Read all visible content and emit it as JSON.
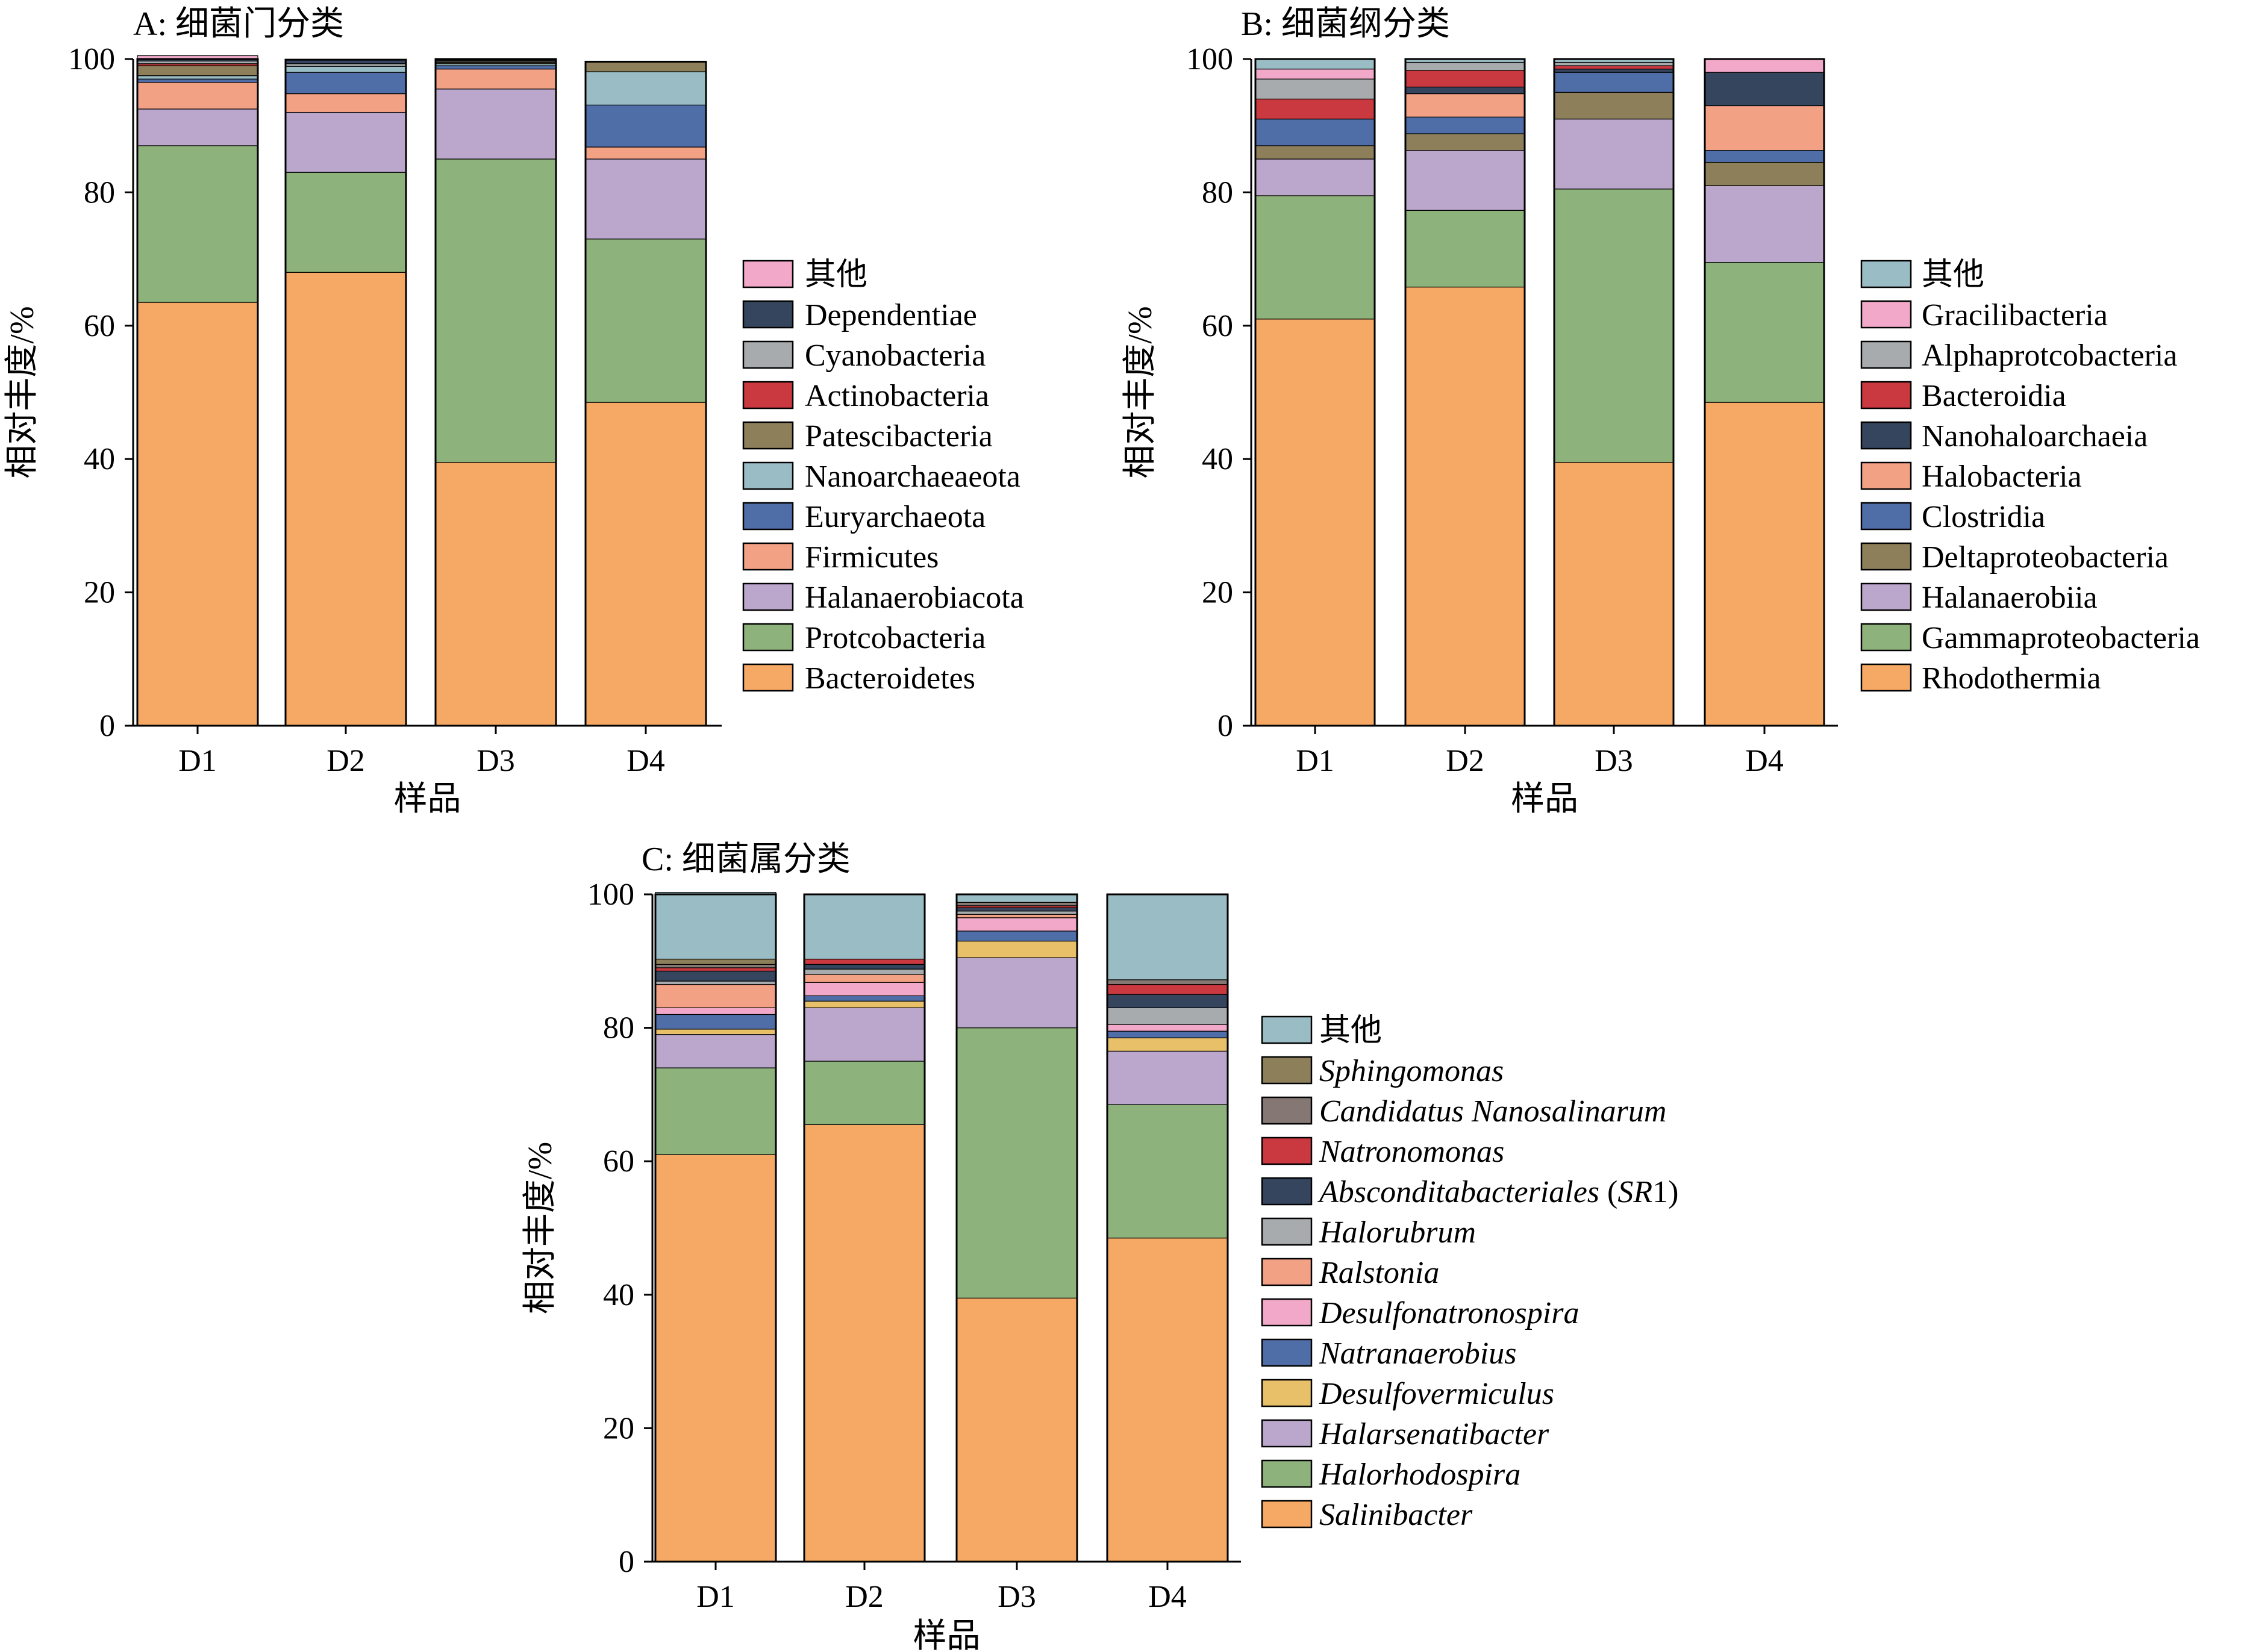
{
  "chart_data": [
    {
      "id": "A",
      "type": "bar",
      "title": "A: 细菌门分类",
      "xlabel": "样品",
      "ylabel": "相对丰度/%",
      "ylim": [
        0,
        100
      ],
      "yticks": [
        "0",
        "20",
        "40",
        "60",
        "80",
        "100"
      ],
      "categories": [
        "D1",
        "D2",
        "D3",
        "D4"
      ],
      "legend_position": "right",
      "series": [
        {
          "name": "Bacteroidetes",
          "color": "#F5A964",
          "italic": false,
          "values": [
            63.5,
            68.0,
            39.5,
            48.5
          ]
        },
        {
          "name": "Protcobacteria",
          "color": "#8DB27B",
          "italic": false,
          "values": [
            23.5,
            15.0,
            45.5,
            24.5
          ]
        },
        {
          "name": "Halanaerobiacota",
          "color": "#BCA7CC",
          "italic": false,
          "values": [
            5.5,
            9.0,
            10.5,
            12.0
          ]
        },
        {
          "name": "Firmicutes",
          "color": "#F3A185",
          "italic": false,
          "values": [
            4.0,
            2.8,
            3.0,
            1.8
          ]
        },
        {
          "name": "Euryarchaeota",
          "color": "#4F6EA8",
          "italic": false,
          "values": [
            0.5,
            3.2,
            0.5,
            6.3
          ]
        },
        {
          "name": "Nanoarchaeaeota",
          "color": "#9ABDC5",
          "italic": false,
          "values": [
            0.5,
            0.9,
            0.3,
            5.0
          ]
        },
        {
          "name": "Patescibacteria",
          "color": "#8C7F5A",
          "italic": false,
          "values": [
            1.5,
            0.0,
            0.2,
            1.5
          ]
        },
        {
          "name": "Actinobacteria",
          "color": "#C9393F",
          "italic": false,
          "values": [
            0.3,
            0.0,
            0.1,
            0.0
          ]
        },
        {
          "name": "Cyanobacteria",
          "color": "#A8ABAD",
          "italic": false,
          "values": [
            0.4,
            0.4,
            0.2,
            0.0
          ]
        },
        {
          "name": "Dependentiae",
          "color": "#36455E",
          "italic": false,
          "values": [
            0.3,
            0.6,
            0.2,
            0.0
          ]
        },
        {
          "name": "其他",
          "color": "#F2A8C8",
          "italic": false,
          "values": [
            0.5,
            0.0,
            0.0,
            0.0
          ]
        }
      ]
    },
    {
      "id": "B",
      "type": "bar",
      "title": "B: 细菌纲分类",
      "xlabel": "样品",
      "ylabel": "相对丰度/%",
      "ylim": [
        0,
        100
      ],
      "yticks": [
        "0",
        "20",
        "40",
        "60",
        "80",
        "100"
      ],
      "categories": [
        "D1",
        "D2",
        "D3",
        "D4"
      ],
      "legend_position": "right",
      "series": [
        {
          "name": "Rhodothermia",
          "color": "#F5A964",
          "italic": false,
          "values": [
            61.0,
            65.8,
            39.5,
            48.5
          ]
        },
        {
          "name": "Gammaproteobacteria",
          "color": "#8DB27B",
          "italic": false,
          "values": [
            18.5,
            11.5,
            41.0,
            21.0
          ]
        },
        {
          "name": "Halanaerobiia",
          "color": "#BCA7CC",
          "italic": false,
          "values": [
            5.5,
            9.0,
            10.5,
            11.5
          ]
        },
        {
          "name": "Deltaproteobacteria",
          "color": "#8C7F5A",
          "italic": false,
          "values": [
            2.0,
            2.5,
            4.0,
            3.5
          ]
        },
        {
          "name": "Clostridia",
          "color": "#4F6EA8",
          "italic": false,
          "values": [
            4.0,
            2.5,
            3.0,
            1.8
          ]
        },
        {
          "name": "Halobacteria",
          "color": "#F3A185",
          "italic": false,
          "values": [
            0.0,
            3.5,
            0.0,
            6.7
          ]
        },
        {
          "name": "Nanohaloarchaeia",
          "color": "#36455E",
          "italic": false,
          "values": [
            0.0,
            1.0,
            0.5,
            5.0
          ]
        },
        {
          "name": "Bacteroidia",
          "color": "#C9393F",
          "italic": false,
          "values": [
            3.0,
            2.5,
            0.5,
            0.0
          ]
        },
        {
          "name": "Alphaprotcobacteria",
          "color": "#A8ABAD",
          "italic": false,
          "values": [
            3.0,
            1.2,
            0.5,
            0.0
          ]
        },
        {
          "name": "Gracilibacteria",
          "color": "#F2A8C8",
          "italic": false,
          "values": [
            1.5,
            0.0,
            0.0,
            2.0
          ]
        },
        {
          "name": "其他",
          "color": "#9ABDC5",
          "italic": false,
          "values": [
            1.5,
            0.5,
            0.5,
            0.0
          ]
        }
      ]
    },
    {
      "id": "C",
      "type": "bar",
      "title": "C: 细菌属分类",
      "xlabel": "样品",
      "ylabel": "相对丰度/%",
      "ylim": [
        0,
        100
      ],
      "yticks": [
        "0",
        "20",
        "40",
        "60",
        "80",
        "100"
      ],
      "categories": [
        "D1",
        "D2",
        "D3",
        "D4"
      ],
      "legend_position": "right",
      "series": [
        {
          "name": "Salinibacter",
          "color": "#F5A964",
          "italic": true,
          "values": [
            61.0,
            65.5,
            39.5,
            48.5
          ]
        },
        {
          "name": "Halorhodospira",
          "color": "#8DB27B",
          "italic": true,
          "values": [
            13.0,
            9.5,
            40.5,
            20.0
          ]
        },
        {
          "name": "Halarsenatibacter",
          "color": "#BCA7CC",
          "italic": true,
          "values": [
            5.0,
            8.0,
            10.5,
            8.0
          ]
        },
        {
          "name": "Desulfovermiculus",
          "color": "#E8C06A",
          "italic": true,
          "values": [
            0.8,
            1.0,
            2.5,
            2.0
          ]
        },
        {
          "name": "Natranaerobius",
          "color": "#4F6EA8",
          "italic": true,
          "values": [
            2.2,
            0.8,
            1.5,
            1.0
          ]
        },
        {
          "name": "Desulfonatronospira",
          "color": "#F2A8C8",
          "italic": true,
          "values": [
            1.0,
            2.0,
            2.0,
            1.0
          ]
        },
        {
          "name": "Ralstonia",
          "color": "#F3A185",
          "italic": true,
          "values": [
            3.5,
            1.2,
            0.5,
            0.0
          ]
        },
        {
          "name": "Halorubrum",
          "color": "#A8ABAD",
          "italic": true,
          "values": [
            0.5,
            0.8,
            0.5,
            2.5
          ]
        },
        {
          "name": "Absconditabacteriales (SR1)",
          "color": "#36455E",
          "italic": true,
          "values": [
            1.5,
            0.7,
            0.5,
            2.0
          ]
        },
        {
          "name": "Natronomonas",
          "color": "#C9393F",
          "italic": true,
          "values": [
            0.5,
            0.8,
            0.3,
            1.5
          ]
        },
        {
          "name": "Candidatus Nanosalinarum",
          "color": "#857874",
          "italic": true,
          "values": [
            0.5,
            0.0,
            0.5,
            0.7
          ]
        },
        {
          "name": "Sphingomonas",
          "color": "#8C7F5A",
          "italic": true,
          "values": [
            0.8,
            0.0,
            0.0,
            0.0
          ]
        },
        {
          "name": "其他",
          "color": "#9ABDC5",
          "italic": false,
          "values": [
            10.0,
            9.7,
            1.2,
            12.8
          ]
        }
      ]
    }
  ]
}
